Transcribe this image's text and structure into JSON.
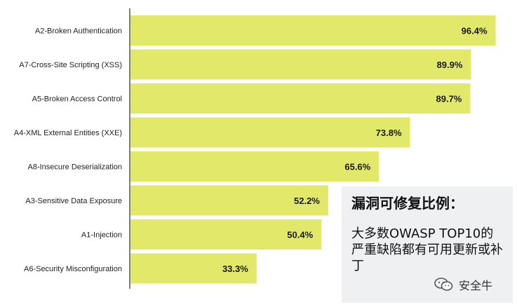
{
  "chart_data": {
    "type": "bar",
    "orientation": "horizontal",
    "categories": [
      "A2-Broken Authentication",
      "A7-Cross-Site Scripting (XSS)",
      "A5-Broken Access Control",
      "A4-XML External Entities (XXE)",
      "A8-Insecure Deserialization",
      "A3-Sensitive Data Exposure",
      "A1-Injection",
      "A6-Security Misconfiguration"
    ],
    "values": [
      96.4,
      89.9,
      89.7,
      73.8,
      65.6,
      52.2,
      50.4,
      33.3
    ],
    "value_labels": [
      "96.4%",
      "89.9%",
      "89.7%",
      "73.8%",
      "65.6%",
      "52.2%",
      "50.4%",
      "33.3%"
    ],
    "xlim": [
      0,
      100
    ],
    "bar_color": "#e2e86a",
    "axis_color": "#555555",
    "grid": false
  },
  "note": {
    "title": "漏洞可修复比例：",
    "body": "大多数OWASP TOP10的严重缺陷都有可用更新或补丁"
  },
  "watermark": {
    "icon": "wechat-icon",
    "text": "安全牛"
  },
  "colors": {
    "note_background": "#eef0f2",
    "bar": "#e2e86a"
  }
}
